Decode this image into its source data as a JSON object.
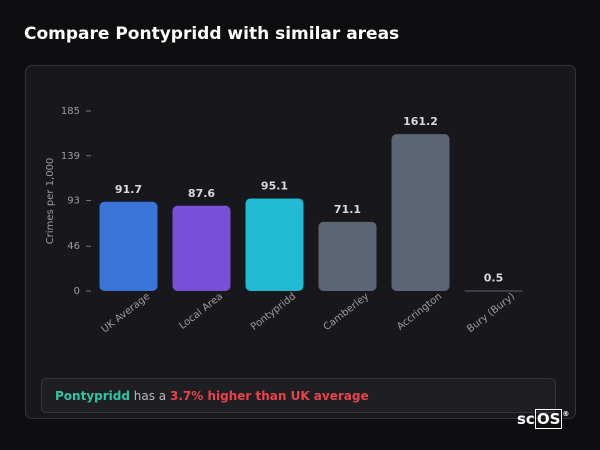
{
  "chart_data": {
    "type": "bar",
    "title": "Compare Pontypridd with similar areas",
    "ylabel": "Crimes per 1,000",
    "categories": [
      "UK Average",
      "Local Area",
      "Pontypridd",
      "Camberley",
      "Accrington",
      "Bury (Bury)"
    ],
    "values": [
      91.7,
      87.6,
      95.1,
      71.1,
      161.2,
      0.5
    ],
    "colors": [
      "#3a75da",
      "#7a4fd8",
      "#22b9d2",
      "#5b6576",
      "#5b6576",
      "#5b6576"
    ],
    "ylim": [
      0,
      185
    ],
    "yticks": [
      0,
      46,
      93,
      139,
      185
    ],
    "grid": false
  },
  "summary": {
    "area": "Pontypridd",
    "text": "has a",
    "highlight": "3.7% higher than UK average"
  },
  "brand": {
    "prefix": "sc",
    "boxed": "OS",
    "mark": "®"
  }
}
